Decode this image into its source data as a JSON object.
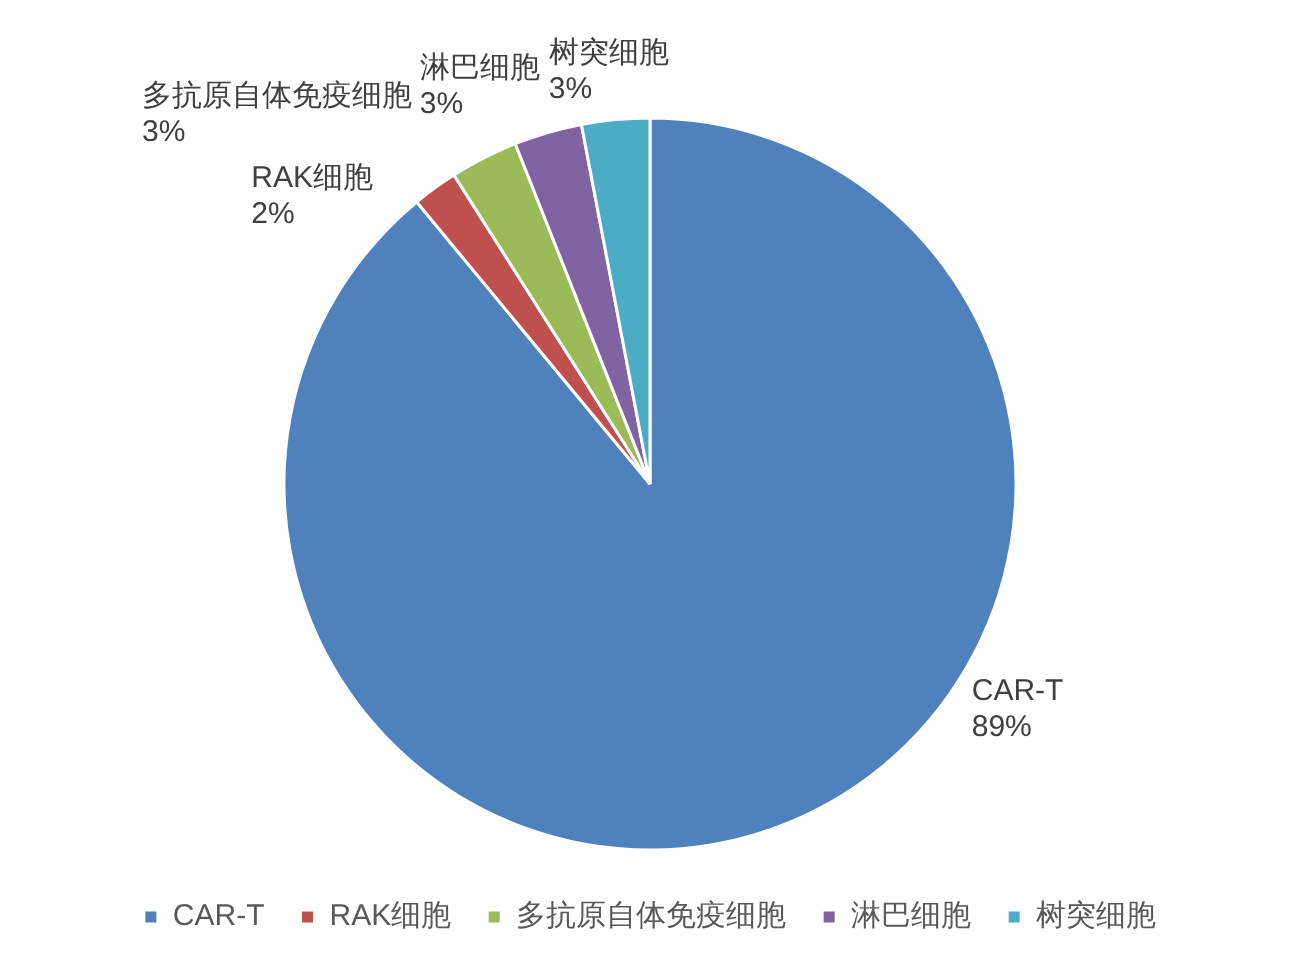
{
  "chart_data": {
    "type": "pie",
    "categories": [
      "CAR-T",
      "RAK细胞",
      "多抗原自体免疫细胞",
      "淋巴细胞",
      "树突细胞"
    ],
    "values": [
      89,
      2,
      3,
      3,
      3
    ],
    "colors": [
      "#4f81bd",
      "#c0504d",
      "#9bbb59",
      "#8064a2",
      "#4bacc6"
    ],
    "value_labels": [
      "89%",
      "2%",
      "3%",
      "3%",
      "3%"
    ],
    "legend": "bottom"
  }
}
